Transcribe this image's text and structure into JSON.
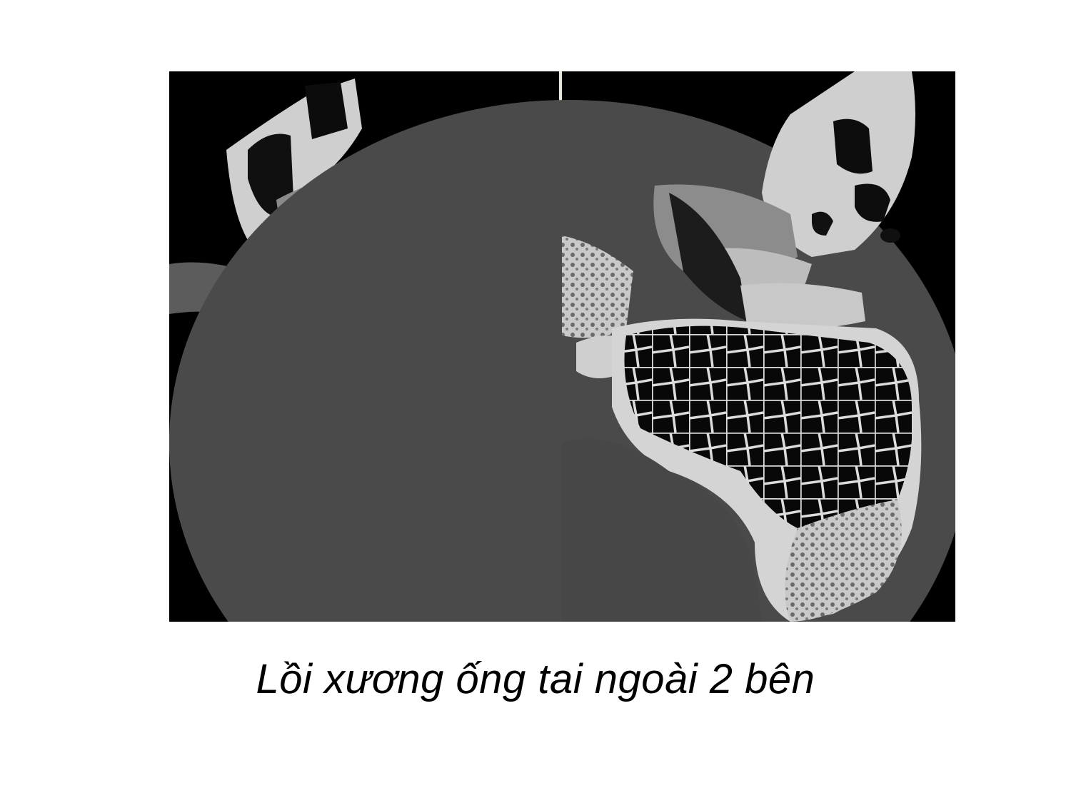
{
  "slide": {
    "caption": "Lồi xương ống tai ngoài 2 bên"
  },
  "figure": {
    "panels": [
      "left-ear-axial-ct",
      "right-ear-axial-ct"
    ],
    "icon": "ct-scan-image"
  }
}
